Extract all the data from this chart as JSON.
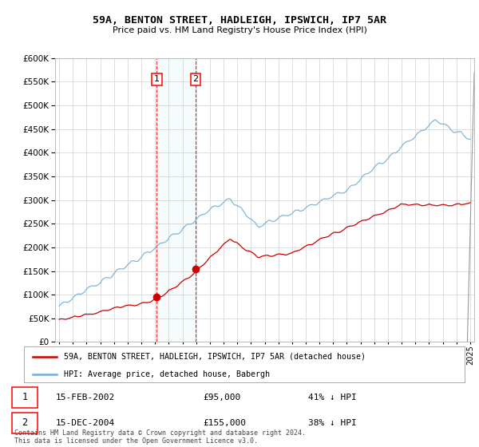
{
  "title": "59A, BENTON STREET, HADLEIGH, IPSWICH, IP7 5AR",
  "subtitle": "Price paid vs. HM Land Registry's House Price Index (HPI)",
  "hpi_color": "#74afd3",
  "price_color": "#cc0000",
  "grid_color": "#d8d8d8",
  "background_color": "#ffffff",
  "ylim": [
    0,
    600000
  ],
  "yticks": [
    0,
    50000,
    100000,
    150000,
    200000,
    250000,
    300000,
    350000,
    400000,
    450000,
    500000,
    550000,
    600000
  ],
  "sale1_date": "15-FEB-2002",
  "sale1_price": 95000,
  "sale1_pct": "41% ↓ HPI",
  "sale2_date": "15-DEC-2004",
  "sale2_price": 155000,
  "sale2_pct": "38% ↓ HPI",
  "legend_property": "59A, BENTON STREET, HADLEIGH, IPSWICH, IP7 5AR (detached house)",
  "legend_hpi": "HPI: Average price, detached house, Babergh",
  "footer": "Contains HM Land Registry data © Crown copyright and database right 2024.\nThis data is licensed under the Open Government Licence v3.0.",
  "marker1_x": 2002.12,
  "marker1_y": 95000,
  "marker2_x": 2004.95,
  "marker2_y": 155000,
  "vline1_x": 2002.12,
  "vline2_x": 2004.95,
  "xlim_left": 1994.7,
  "xlim_right": 2025.3
}
